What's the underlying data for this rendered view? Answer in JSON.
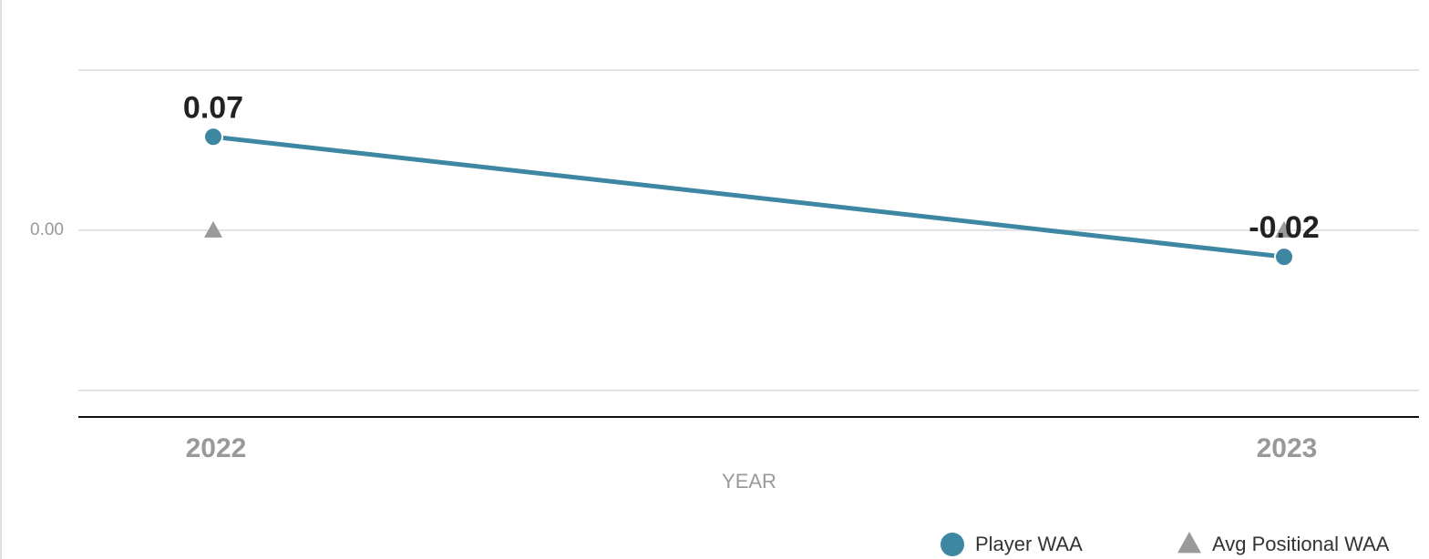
{
  "chart_data": {
    "type": "line",
    "x_label": "YEAR",
    "categories": [
      "2022",
      "2023"
    ],
    "series": [
      {
        "name": "Player WAA",
        "color": "#3e87a3",
        "marker": "circle",
        "values": [
          0.07,
          -0.02
        ]
      },
      {
        "name": "Avg Positional WAA",
        "color": "#9a9a9a",
        "marker": "triangle",
        "values": [
          0,
          0
        ]
      }
    ],
    "ylim": [
      -0.14,
      0.12
    ],
    "yticks": [
      {
        "value": 0,
        "label": "0.00"
      }
    ],
    "ygrid": [
      0.12,
      0,
      -0.12
    ],
    "grid": true
  }
}
